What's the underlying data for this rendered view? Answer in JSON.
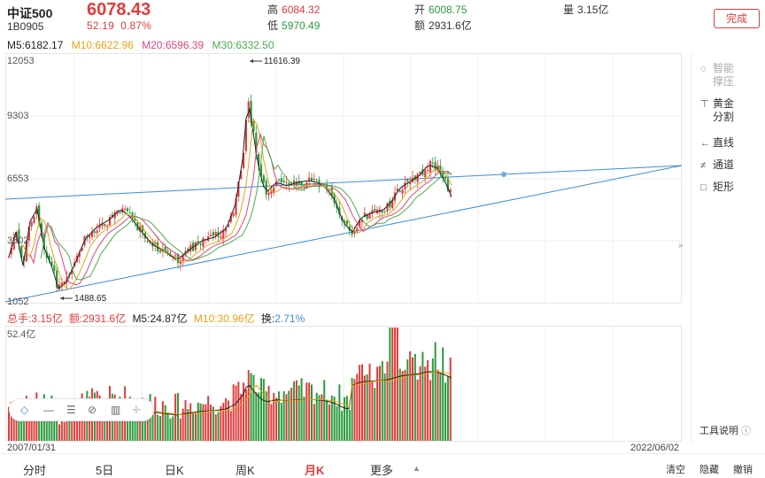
{
  "header": {
    "name": "中证500",
    "code": "1B0905",
    "price": "6078.43",
    "change": "52.19",
    "change_pct": "0.87%",
    "high_label": "高",
    "high": "6084.32",
    "low_label": "低",
    "low": "5970.49",
    "open_label": "开",
    "open": "6008.75",
    "amount_label": "额",
    "amount": "2931.6亿",
    "volume_label": "量",
    "volume": "3.15亿",
    "done": "完成"
  },
  "ma": {
    "m5": "M5:6182.17",
    "m10": "M10:6622.96",
    "m20": "M20:6596.39",
    "m30": "M30:6332.50"
  },
  "y_axis": [
    "12053",
    "9303",
    "6553",
    "3802",
    "1052"
  ],
  "annotations": {
    "max": "11616.39",
    "min": "1488.65"
  },
  "volume_row": {
    "total": "总手:3.15亿",
    "amount": "额:2931.6亿",
    "m5": "M5:24.87亿",
    "m10": "M10:30.96亿",
    "turn_label": "换:",
    "turn": "2.71%",
    "ymax": "52.4亿"
  },
  "tools": {
    "smart": "智能撑压",
    "golden": "黄金分割",
    "line": "直线",
    "channel": "通道",
    "rect": "矩形",
    "help": "工具说明"
  },
  "dates": {
    "start": "2007/01/31",
    "end": "2022/06/02"
  },
  "tabs": [
    "分时",
    "5日",
    "日K",
    "周K",
    "月K",
    "更多"
  ],
  "right_buttons": [
    "清空",
    "隐藏",
    "撤销"
  ],
  "colors": {
    "up": "#e33b3b",
    "down": "#2a9b3c",
    "ma5": "#222222",
    "ma10": "#e8a317",
    "ma20": "#e0457b",
    "ma30": "#4caf50",
    "trend": "#3d8bd4"
  }
}
